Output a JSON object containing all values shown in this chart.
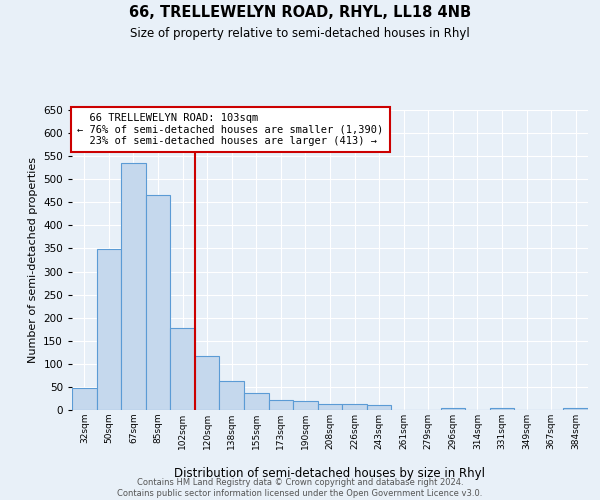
{
  "title": "66, TRELLEWELYN ROAD, RHYL, LL18 4NB",
  "subtitle": "Size of property relative to semi-detached houses in Rhyl",
  "xlabel": "Distribution of semi-detached houses by size in Rhyl",
  "ylabel": "Number of semi-detached properties",
  "bar_labels": [
    "32sqm",
    "50sqm",
    "67sqm",
    "85sqm",
    "102sqm",
    "120sqm",
    "138sqm",
    "155sqm",
    "173sqm",
    "190sqm",
    "208sqm",
    "226sqm",
    "243sqm",
    "261sqm",
    "279sqm",
    "296sqm",
    "314sqm",
    "331sqm",
    "349sqm",
    "367sqm",
    "384sqm"
  ],
  "bar_values": [
    47,
    348,
    535,
    466,
    178,
    118,
    62,
    36,
    22,
    20,
    14,
    12,
    10,
    0,
    0,
    5,
    0,
    4,
    0,
    0,
    5
  ],
  "bar_color": "#c5d8ed",
  "bar_edge_color": "#5b9bd5",
  "highlight_bar_index": 4,
  "highlight_line_color": "#cc0000",
  "property_label": "66 TRELLEWELYN ROAD: 103sqm",
  "pct_smaller": 76,
  "count_smaller": 1390,
  "pct_larger": 23,
  "count_larger": 413,
  "ylim": [
    0,
    650
  ],
  "yticks": [
    0,
    50,
    100,
    150,
    200,
    250,
    300,
    350,
    400,
    450,
    500,
    550,
    600,
    650
  ],
  "annotation_box_color": "#ffffff",
  "annotation_box_edge_color": "#cc0000",
  "footer_line1": "Contains HM Land Registry data © Crown copyright and database right 2024.",
  "footer_line2": "Contains public sector information licensed under the Open Government Licence v3.0.",
  "background_color": "#e8f0f8",
  "plot_background_color": "#e8f0f8",
  "grid_color": "#ffffff"
}
